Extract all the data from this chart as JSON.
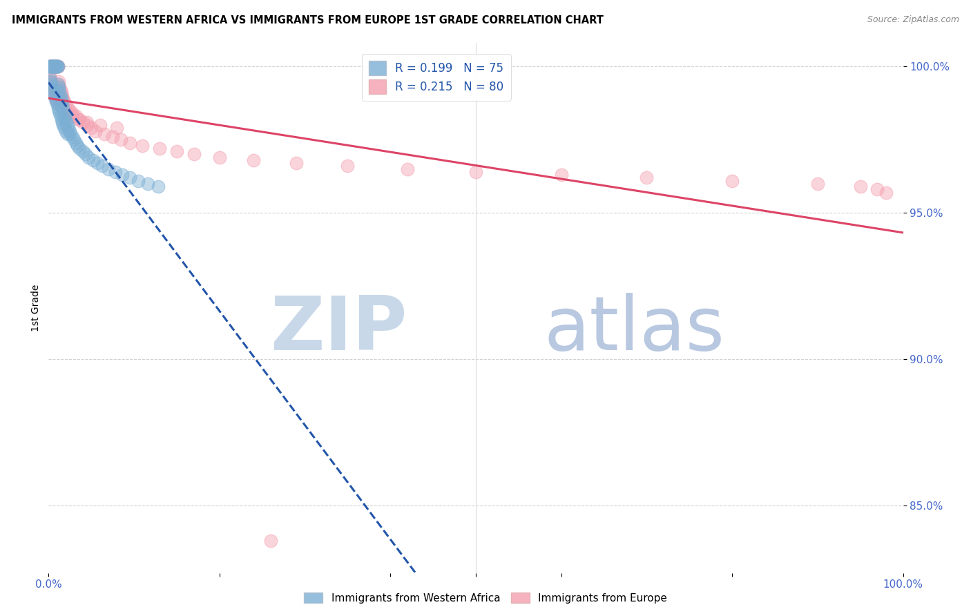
{
  "title": "IMMIGRANTS FROM WESTERN AFRICA VS IMMIGRANTS FROM EUROPE 1ST GRADE CORRELATION CHART",
  "source": "Source: ZipAtlas.com",
  "ylabel": "1st Grade",
  "xlim": [
    0.0,
    1.0
  ],
  "ylim": [
    0.827,
    1.008
  ],
  "yticks": [
    0.85,
    0.9,
    0.95,
    1.0
  ],
  "ytick_labels": [
    "85.0%",
    "90.0%",
    "95.0%",
    "100.0%"
  ],
  "legend_label_blue": "Immigrants from Western Africa",
  "legend_label_pink": "Immigrants from Europe",
  "R_blue": 0.199,
  "N_blue": 75,
  "R_pink": 0.215,
  "N_pink": 80,
  "color_blue": "#7BAFD4",
  "color_pink": "#F4A0B0",
  "color_blue_line": "#2255AA",
  "color_pink_line": "#DD4466",
  "color_axis_labels": "#4466CC",
  "watermark_zip_color": "#C8D8E8",
  "watermark_atlas_color": "#B8C8E0",
  "blue_x": [
    0.001,
    0.002,
    0.002,
    0.003,
    0.003,
    0.004,
    0.004,
    0.005,
    0.005,
    0.006,
    0.006,
    0.007,
    0.007,
    0.008,
    0.008,
    0.009,
    0.009,
    0.01,
    0.01,
    0.011,
    0.011,
    0.012,
    0.012,
    0.013,
    0.014,
    0.015,
    0.015,
    0.016,
    0.017,
    0.018,
    0.019,
    0.02,
    0.021,
    0.022,
    0.023,
    0.025,
    0.026,
    0.028,
    0.03,
    0.032,
    0.034,
    0.036,
    0.04,
    0.043,
    0.047,
    0.052,
    0.057,
    0.063,
    0.07,
    0.078,
    0.086,
    0.095,
    0.105,
    0.116,
    0.128,
    0.001,
    0.002,
    0.003,
    0.004,
    0.005,
    0.006,
    0.007,
    0.008,
    0.009,
    0.01,
    0.011,
    0.012,
    0.013,
    0.014,
    0.015,
    0.016,
    0.017,
    0.018,
    0.02,
    0.022
  ],
  "blue_y": [
    1.0,
    1.0,
    1.0,
    1.0,
    1.0,
    1.0,
    1.0,
    1.0,
    1.0,
    1.0,
    1.0,
    1.0,
    1.0,
    1.0,
    1.0,
    1.0,
    1.0,
    1.0,
    1.0,
    1.0,
    0.994,
    0.992,
    0.993,
    0.991,
    0.99,
    0.989,
    0.988,
    0.987,
    0.986,
    0.984,
    0.983,
    0.982,
    0.981,
    0.98,
    0.979,
    0.978,
    0.977,
    0.976,
    0.975,
    0.974,
    0.973,
    0.972,
    0.971,
    0.97,
    0.969,
    0.968,
    0.967,
    0.966,
    0.965,
    0.964,
    0.963,
    0.962,
    0.961,
    0.96,
    0.959,
    0.996,
    0.995,
    0.994,
    0.993,
    0.992,
    0.991,
    0.99,
    0.989,
    0.988,
    0.987,
    0.986,
    0.985,
    0.984,
    0.983,
    0.982,
    0.981,
    0.98,
    0.979,
    0.978,
    0.977
  ],
  "pink_x": [
    0.001,
    0.002,
    0.002,
    0.003,
    0.003,
    0.004,
    0.004,
    0.005,
    0.005,
    0.006,
    0.006,
    0.007,
    0.007,
    0.008,
    0.008,
    0.009,
    0.009,
    0.01,
    0.01,
    0.011,
    0.011,
    0.012,
    0.012,
    0.013,
    0.014,
    0.015,
    0.016,
    0.017,
    0.018,
    0.02,
    0.022,
    0.025,
    0.028,
    0.032,
    0.036,
    0.04,
    0.045,
    0.05,
    0.055,
    0.065,
    0.075,
    0.085,
    0.095,
    0.11,
    0.13,
    0.15,
    0.17,
    0.2,
    0.24,
    0.29,
    0.35,
    0.42,
    0.5,
    0.6,
    0.7,
    0.8,
    0.9,
    0.95,
    0.97,
    0.98,
    0.001,
    0.002,
    0.003,
    0.004,
    0.005,
    0.006,
    0.007,
    0.008,
    0.009,
    0.01,
    0.012,
    0.015,
    0.018,
    0.022,
    0.028,
    0.035,
    0.045,
    0.06,
    0.08,
    0.26
  ],
  "pink_y": [
    1.0,
    1.0,
    1.0,
    1.0,
    1.0,
    1.0,
    1.0,
    1.0,
    1.0,
    1.0,
    1.0,
    1.0,
    1.0,
    1.0,
    1.0,
    1.0,
    1.0,
    1.0,
    1.0,
    1.0,
    1.0,
    0.995,
    0.994,
    0.993,
    0.992,
    0.991,
    0.99,
    0.989,
    0.988,
    0.987,
    0.986,
    0.985,
    0.984,
    0.983,
    0.982,
    0.981,
    0.98,
    0.979,
    0.978,
    0.977,
    0.976,
    0.975,
    0.974,
    0.973,
    0.972,
    0.971,
    0.97,
    0.969,
    0.968,
    0.967,
    0.966,
    0.965,
    0.964,
    0.963,
    0.962,
    0.961,
    0.96,
    0.959,
    0.958,
    0.957,
    0.997,
    0.996,
    0.995,
    0.994,
    0.993,
    0.992,
    0.991,
    0.99,
    0.989,
    0.988,
    0.987,
    0.986,
    0.985,
    0.984,
    0.983,
    0.982,
    0.981,
    0.98,
    0.979,
    0.838
  ]
}
